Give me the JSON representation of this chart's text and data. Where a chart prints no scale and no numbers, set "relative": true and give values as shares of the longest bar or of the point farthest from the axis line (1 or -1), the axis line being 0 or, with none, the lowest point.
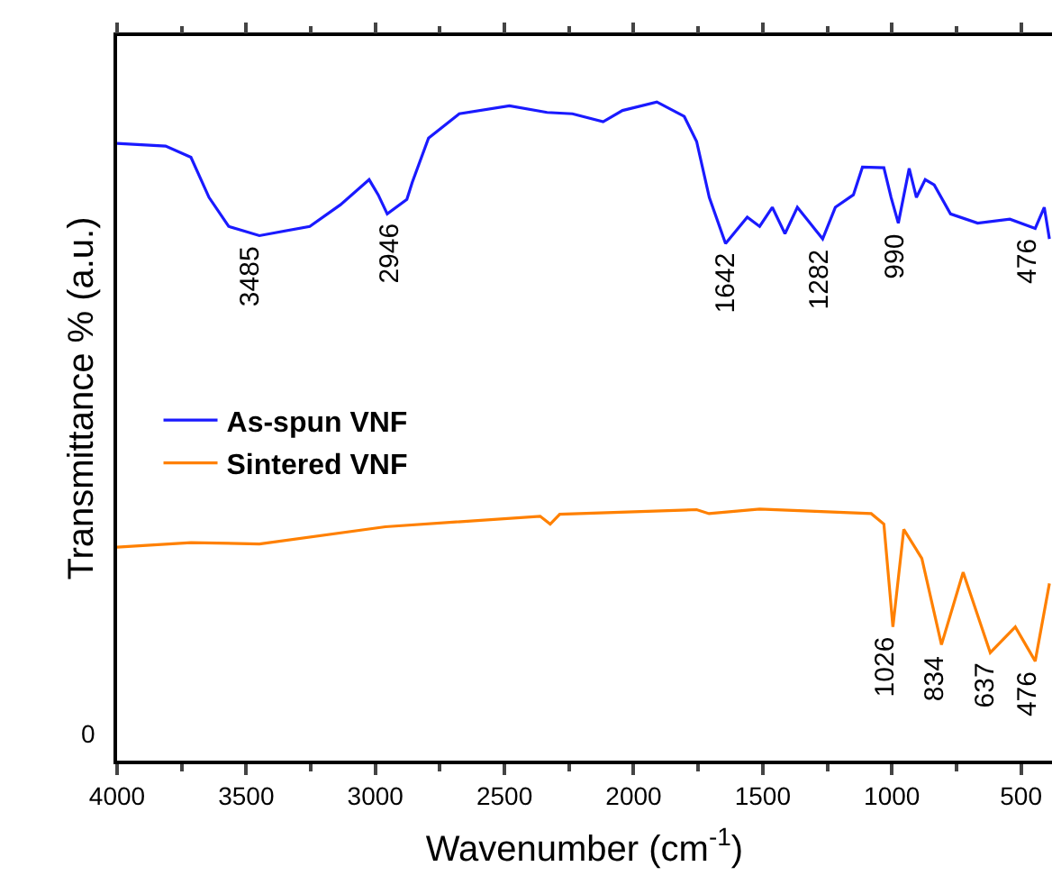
{
  "chart_data": {
    "type": "line",
    "relative": true,
    "xlabel": "Wavenumber (cm$^{-1}$)",
    "ylabel": "Transmittance % (a.u.)",
    "xlim": [
      4000,
      380
    ],
    "xticks": [
      4000,
      {
        "value": 3750,
        "label": null
      },
      3500,
      {
        "value": 3250,
        "label": null
      },
      3000,
      {
        "value": 2750,
        "label": null
      },
      2500,
      {
        "value": 2250,
        "label": null
      },
      2000,
      {
        "value": 1750,
        "label": null
      },
      1500,
      {
        "value": 1250,
        "label": null
      },
      1000,
      {
        "value": 750,
        "label": null
      },
      500
    ],
    "legend": "left",
    "marker": "none",
    "line_style": "solid",
    "series": [
      {
        "name": "As-spun VNF",
        "color": "#1a1aff",
        "x": [
          4000,
          3812,
          3714,
          3644,
          3568,
          3449,
          3254,
          3135,
          3024,
          2989,
          2954,
          2878,
          2857,
          2794,
          2675,
          2481,
          2335,
          2237,
          2118,
          2043,
          1910,
          1804,
          1756,
          1707,
          1644,
          1560,
          1512,
          1463,
          1414,
          1366,
          1317,
          1268,
          1219,
          1149,
          1114,
          1031,
          1003,
          975,
          933,
          905,
          871,
          836,
          773,
          668,
          543,
          445,
          410,
          390
        ],
        "values": [
          0.937,
          0.933,
          0.916,
          0.855,
          0.811,
          0.797,
          0.811,
          0.844,
          0.882,
          0.859,
          0.83,
          0.852,
          0.878,
          0.945,
          0.982,
          0.994,
          0.984,
          0.982,
          0.97,
          0.987,
          1.0,
          0.978,
          0.94,
          0.855,
          0.785,
          0.825,
          0.811,
          0.84,
          0.8,
          0.84,
          0.816,
          0.792,
          0.84,
          0.859,
          0.901,
          0.9,
          0.855,
          0.816,
          0.899,
          0.855,
          0.882,
          0.874,
          0.83,
          0.816,
          0.822,
          0.808,
          0.84,
          0.792
        ]
      },
      {
        "name": "Sintered VNF",
        "color": "#ff8000",
        "x": [
          4000,
          3714,
          3449,
          2961,
          2362,
          2323,
          2286,
          1756,
          1708,
          1512,
          1080,
          1031,
          996,
          954,
          884,
          808,
          724,
          619,
          522,
          445,
          390
        ],
        "values": [
          0.324,
          0.331,
          0.329,
          0.355,
          0.371,
          0.359,
          0.374,
          0.381,
          0.375,
          0.382,
          0.375,
          0.359,
          0.203,
          0.351,
          0.307,
          0.176,
          0.286,
          0.164,
          0.203,
          0.151,
          0.269
        ]
      }
    ],
    "annotations": [
      {
        "text": "3485",
        "x": 3485,
        "y": 0.797
      },
      {
        "text": "2946",
        "x": 2946,
        "y": 0.83
      },
      {
        "text": "1642",
        "x": 1642,
        "y": 0.785
      },
      {
        "text": "1282",
        "x": 1282,
        "y": 0.792
      },
      {
        "text": "990",
        "x": 990,
        "y": 0.816
      },
      {
        "text": "476",
        "x": 476,
        "y": 0.808
      },
      {
        "text": "1026",
        "x": 1026,
        "y": 0.203
      },
      {
        "text": "834",
        "x": 834,
        "y": 0.176
      },
      {
        "text": "637",
        "x": 637,
        "y": 0.164
      },
      {
        "text": "476",
        "x": 476,
        "y": 0.151
      },
      "0"
    ]
  }
}
